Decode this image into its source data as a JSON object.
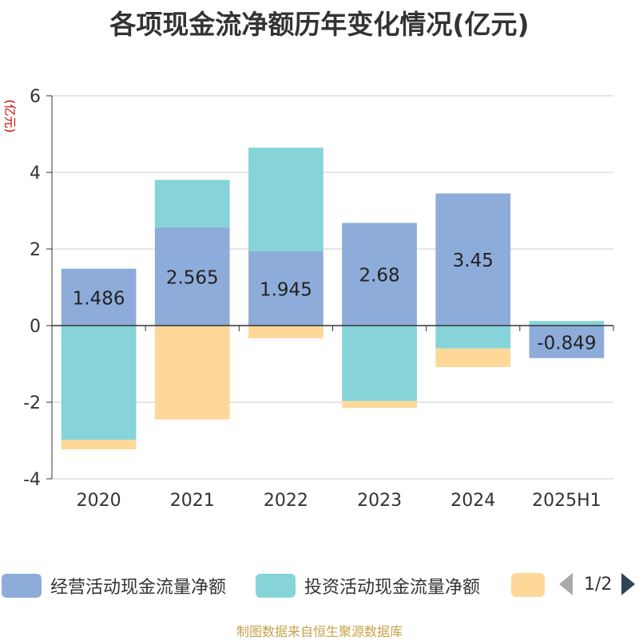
{
  "title": "各项现金流净额历年变化情况(亿元)",
  "chart_data": {
    "type": "bar",
    "stacked": true,
    "ylabel": "(亿元)",
    "ylim": [
      -4,
      6
    ],
    "yticks": [
      6,
      4,
      2,
      0,
      -2,
      -4
    ],
    "grid": true,
    "categories": [
      "2020",
      "2021",
      "2022",
      "2023",
      "2024",
      "2025H1"
    ],
    "series": [
      {
        "name": "经营活动现金流量净额",
        "color": "#8eacda",
        "values": [
          1.486,
          2.565,
          1.945,
          2.68,
          3.45,
          -0.849
        ],
        "labels": [
          "1.486",
          "2.565",
          "1.945",
          "2.68",
          "3.45",
          "-0.849"
        ]
      },
      {
        "name": "投资活动现金流量净额",
        "color": "#86d4d8",
        "values": [
          -2.98,
          1.24,
          2.7,
          -1.97,
          -0.6,
          0.12
        ]
      },
      {
        "name": "",
        "color": "#fed898",
        "values": [
          -0.25,
          -2.45,
          -0.33,
          -0.18,
          -0.48,
          0
        ]
      }
    ],
    "legend_position": "bottom",
    "legend_page": "1/2"
  },
  "source": "制图数据来自恒生聚源数据库"
}
